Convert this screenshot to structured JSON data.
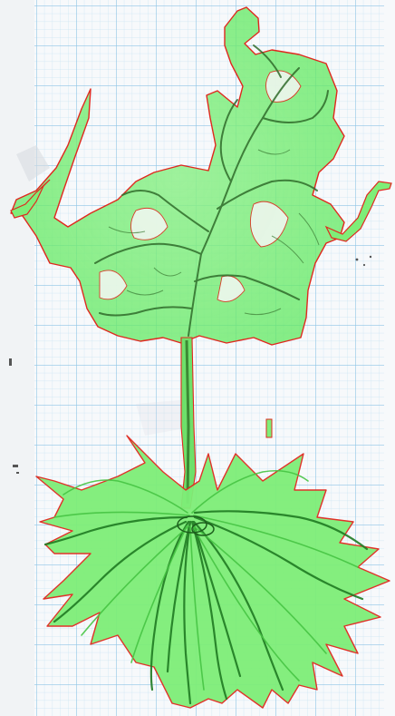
{
  "image": {
    "subject": "segmented-plant-specimen-on-graph-paper",
    "colors": {
      "paper": "#f7f9fb",
      "grid_minor": "#c9e3f3",
      "grid_major": "#8ec4e6",
      "mask_fill": "#5fe85f",
      "mask_fill_light": "#a8f5a0",
      "outline": "#e0281e",
      "vein_dark": "#2f6b2a",
      "stem": "#3c8a34",
      "root_dark": "#1f7a22",
      "root_light": "#46c443"
    }
  }
}
